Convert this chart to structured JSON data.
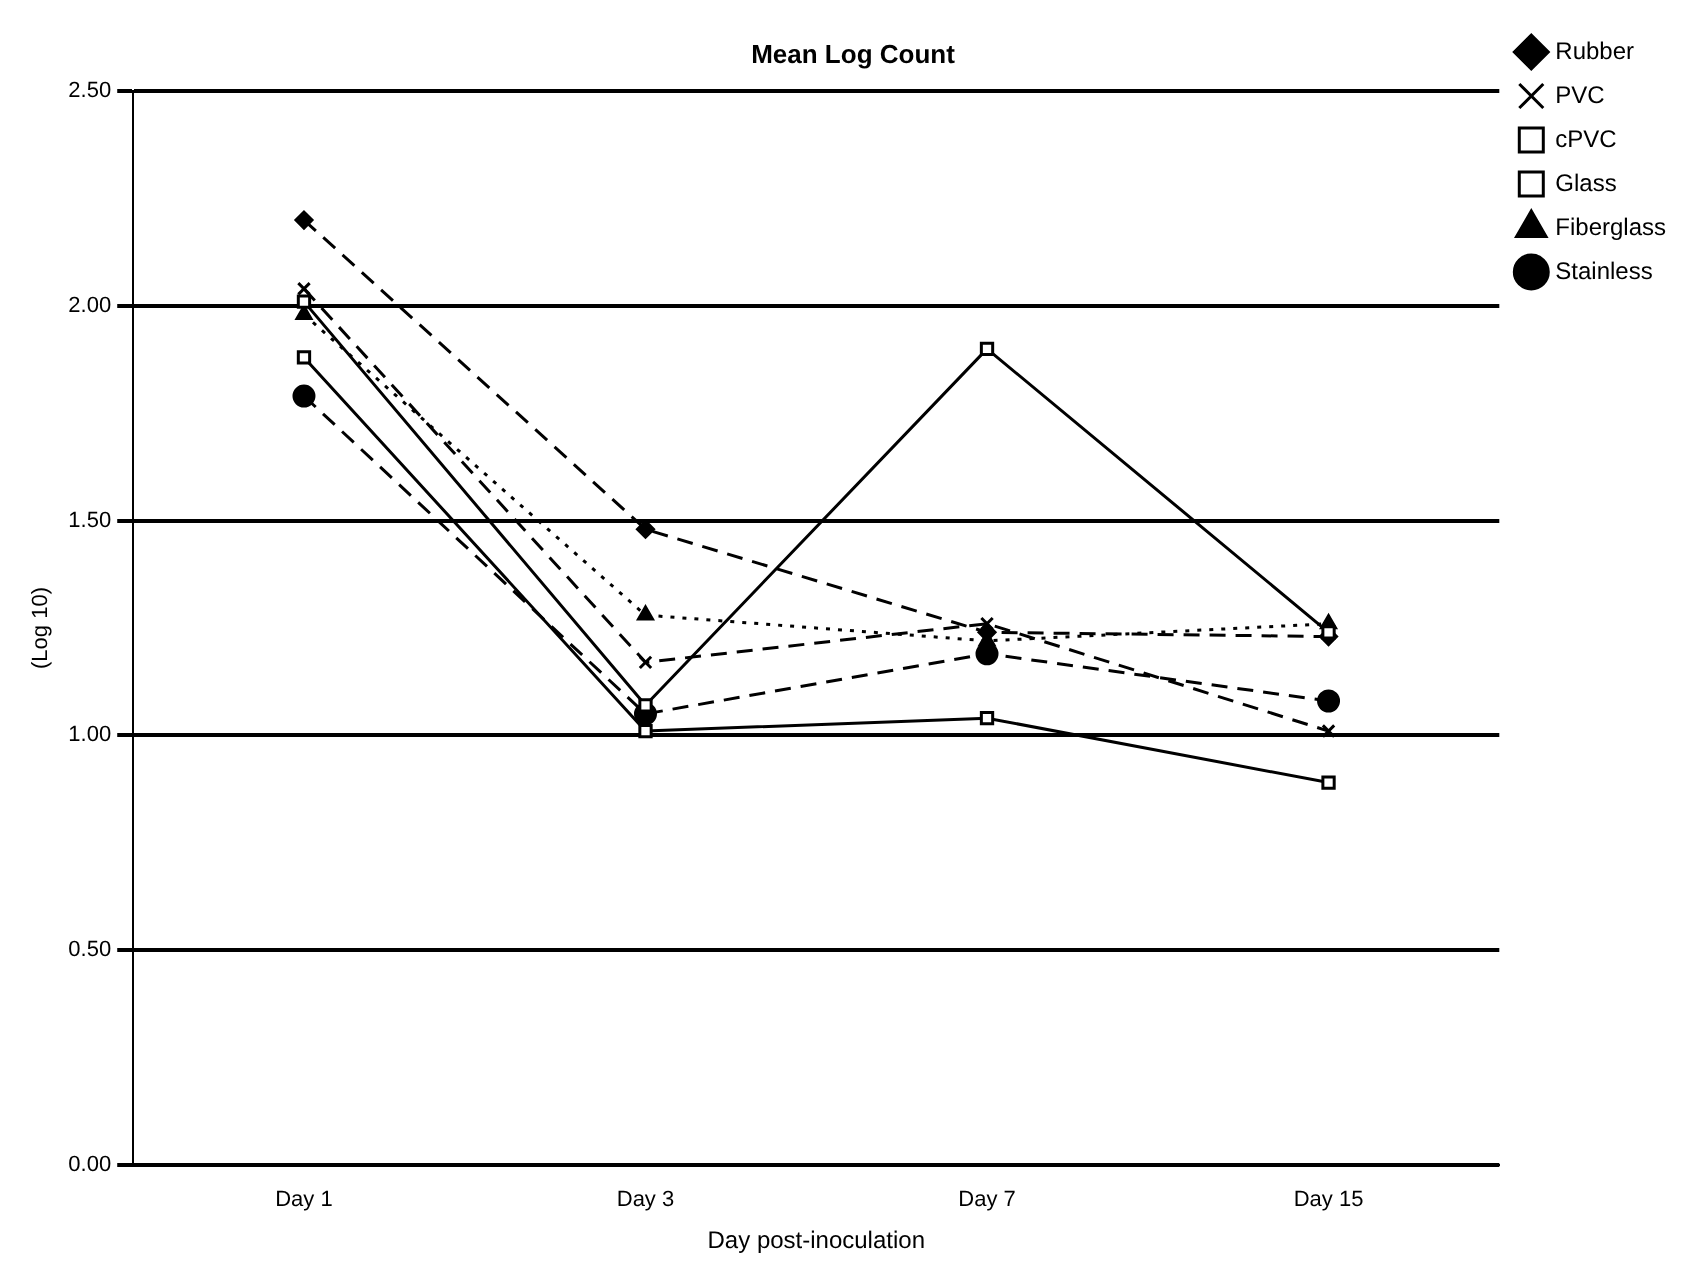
{
  "chart_data": {
    "type": "line",
    "title": "Mean Log Count",
    "xlabel": "Day post-inoculation",
    "ylabel": "(Log 10)",
    "categories": [
      "Day 1",
      "Day 3",
      "Day 7",
      "Day 15"
    ],
    "series": [
      {
        "name": "Rubber",
        "color": "#000000",
        "values": [
          2.2,
          1.48,
          1.24,
          1.23
        ],
        "marker": "diamond",
        "line_style": "dashed"
      },
      {
        "name": "PVC",
        "color": "#000000",
        "values": [
          2.04,
          1.17,
          1.26,
          1.01
        ],
        "marker": "cross",
        "line_style": "dashed"
      },
      {
        "name": "cPVC",
        "color": "#000000",
        "values": [
          2.01,
          1.07,
          1.9,
          1.24
        ],
        "marker": "square",
        "line_style": "solid"
      },
      {
        "name": "Glass",
        "color": "#000000",
        "values": [
          1.88,
          1.01,
          1.04,
          0.89
        ],
        "marker": "square",
        "line_style": "solid"
      },
      {
        "name": "Fiberglass",
        "color": "#000000",
        "values": [
          1.98,
          1.28,
          1.22,
          1.26
        ],
        "marker": "triangle",
        "line_style": "dotted"
      },
      {
        "name": "Stainless",
        "color": "#000000",
        "values": [
          1.79,
          1.05,
          1.19,
          1.08
        ],
        "marker": "circle",
        "line_style": "dashed"
      }
    ],
    "ylim": [
      0,
      2.5
    ],
    "yticks": [
      {
        "value": 0,
        "label": "0.00"
      },
      {
        "value": 0.5,
        "label": "0.50"
      },
      {
        "value": 1,
        "label": "1.00"
      },
      {
        "value": 1.5,
        "label": "1.50"
      },
      {
        "value": 2,
        "label": "2.00"
      },
      {
        "value": 2.5,
        "label": "2.50"
      }
    ],
    "grid": "y",
    "legend": "right"
  }
}
